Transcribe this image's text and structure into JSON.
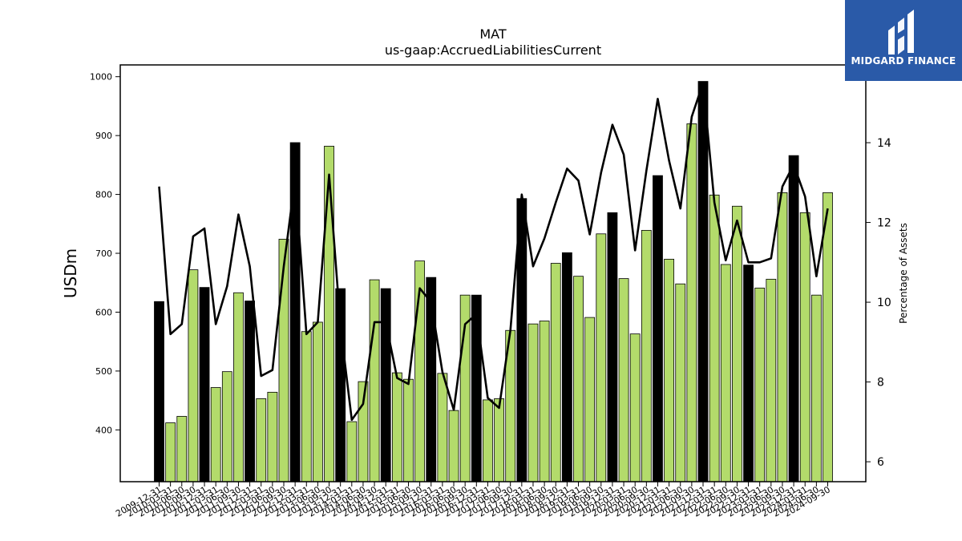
{
  "chart_data": {
    "type": "bar",
    "title": "MAT",
    "subtitle": "us-gaap:AccruedLiabilitiesCurrent",
    "ylabel": "USDm",
    "y2label": "Percentage of Assets",
    "ylim": [
      312,
      1020
    ],
    "y2lim": [
      5.5,
      15.95
    ],
    "yticks": [
      400,
      500,
      600,
      700,
      800,
      900,
      1000
    ],
    "y2ticks": [
      6,
      8,
      10,
      12,
      14
    ],
    "grid": false,
    "categories": [
      "2009-12-31",
      "2010-03-31",
      "2010-06-30",
      "2010-09-30",
      "2010-12-31",
      "2011-03-31",
      "2011-06-30",
      "2011-09-30",
      "2011-12-31",
      "2012-03-31",
      "2012-06-30",
      "2012-09-30",
      "2012-12-31",
      "2013-03-31",
      "2013-06-30",
      "2013-09-30",
      "2013-12-31",
      "2014-03-31",
      "2014-06-30",
      "2014-09-30",
      "2014-12-31",
      "2015-03-31",
      "2015-06-30",
      "2015-09-30",
      "2015-12-31",
      "2016-03-31",
      "2016-06-30",
      "2016-09-30",
      "2016-12-31",
      "2017-03-31",
      "2017-06-30",
      "2017-09-30",
      "2017-12-31",
      "2018-03-31",
      "2018-06-30",
      "2018-09-30",
      "2018-12-31",
      "2019-03-31",
      "2019-06-30",
      "2019-09-30",
      "2019-12-31",
      "2020-03-31",
      "2020-06-30",
      "2020-09-30",
      "2020-12-31",
      "2021-03-31",
      "2021-06-30",
      "2021-09-30",
      "2021-12-31",
      "2022-03-31",
      "2022-06-30",
      "2022-09-30",
      "2022-12-31",
      "2023-03-31",
      "2023-06-30",
      "2023-09-30",
      "2023-12-31",
      "2024-03-31",
      "2024-06-30",
      "2024-09-30"
    ],
    "series": [
      {
        "kind": "bar",
        "axis": "left",
        "values": [
          618,
          412,
          423,
          672,
          642,
          472,
          499,
          633,
          619,
          453,
          464,
          724,
          888,
          567,
          583,
          882,
          640,
          414,
          482,
          655,
          640,
          497,
          486,
          687,
          659,
          496,
          433,
          629,
          629,
          451,
          453,
          569,
          793,
          580,
          585,
          683,
          701,
          661,
          591,
          733,
          769,
          657,
          563,
          739,
          832,
          690,
          648,
          920,
          992,
          799,
          681,
          780,
          680,
          641,
          656,
          803,
          866,
          769,
          629,
          803
        ],
        "highlight": [
          true,
          false,
          false,
          false,
          true,
          false,
          false,
          false,
          true,
          false,
          false,
          false,
          true,
          false,
          false,
          false,
          true,
          false,
          false,
          false,
          true,
          false,
          false,
          false,
          true,
          false,
          false,
          false,
          true,
          false,
          false,
          false,
          true,
          false,
          false,
          false,
          true,
          false,
          false,
          false,
          true,
          false,
          false,
          false,
          true,
          false,
          false,
          false,
          true,
          false,
          false,
          false,
          true,
          false,
          false,
          false,
          true,
          false,
          false,
          false
        ]
      },
      {
        "kind": "line",
        "axis": "right",
        "values": [
          12.9,
          9.2,
          9.45,
          11.65,
          11.85,
          9.45,
          10.4,
          12.2,
          10.9,
          8.15,
          8.3,
          10.9,
          13.1,
          9.2,
          9.5,
          13.2,
          9.4,
          7.05,
          7.45,
          9.5,
          9.5,
          8.1,
          7.95,
          10.35,
          10.0,
          8.25,
          7.3,
          9.45,
          9.7,
          7.6,
          7.35,
          9.3,
          12.7,
          10.9,
          11.6,
          12.5,
          13.35,
          13.05,
          11.7,
          13.25,
          14.45,
          13.7,
          11.3,
          13.3,
          15.1,
          13.55,
          12.35,
          14.65,
          15.5,
          12.5,
          11.05,
          12.05,
          11.0,
          11.0,
          11.1,
          12.9,
          13.45,
          12.65,
          10.65,
          12.35
        ]
      }
    ],
    "colors": {
      "bar_normal": "#b3db6b",
      "bar_highlight": "#000000",
      "bar_edge": "#000000",
      "line": "#000000"
    }
  },
  "logo": {
    "text": "MIDGARD FINANCE",
    "bg": "#2a5aa8"
  }
}
